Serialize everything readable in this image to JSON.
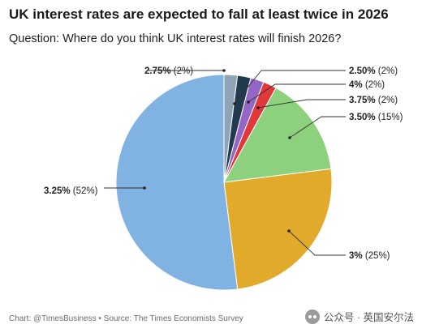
{
  "header": {
    "title": "UK interest rates are expected to fall at least twice in 2026",
    "subtitle": "Question: Where do you think UK interest rates will finish 2026?"
  },
  "chart_data": {
    "type": "pie",
    "start_angle_deg": 0,
    "direction": "clockwise",
    "slices": [
      {
        "label": "2.75%",
        "pct_label": "(2%)",
        "value": 2,
        "color": "#8fa3b8",
        "side": "left"
      },
      {
        "label": "2.50%",
        "pct_label": "(2%)",
        "value": 2,
        "color": "#213a4f",
        "side": "right"
      },
      {
        "label": "4%",
        "pct_label": "(2%)",
        "value": 2,
        "color": "#9467c4",
        "side": "right"
      },
      {
        "label": "3.75%",
        "pct_label": "(2%)",
        "value": 2,
        "color": "#e0383b",
        "side": "right"
      },
      {
        "label": "3.50%",
        "pct_label": "(15%)",
        "value": 15,
        "color": "#8dd17e",
        "side": "right"
      },
      {
        "label": "3%",
        "pct_label": "(25%)",
        "value": 25,
        "color": "#e1aa2b",
        "side": "right"
      },
      {
        "label": "3.25%",
        "pct_label": "(52%)",
        "value": 52,
        "color": "#80b2e2",
        "side": "left"
      }
    ]
  },
  "footer": {
    "source": "Chart: @TimesBusiness • Source: The Times Economists Survey"
  },
  "watermark": {
    "text": "公众号 · 英国安尔法",
    "icon": "wechat-icon"
  }
}
